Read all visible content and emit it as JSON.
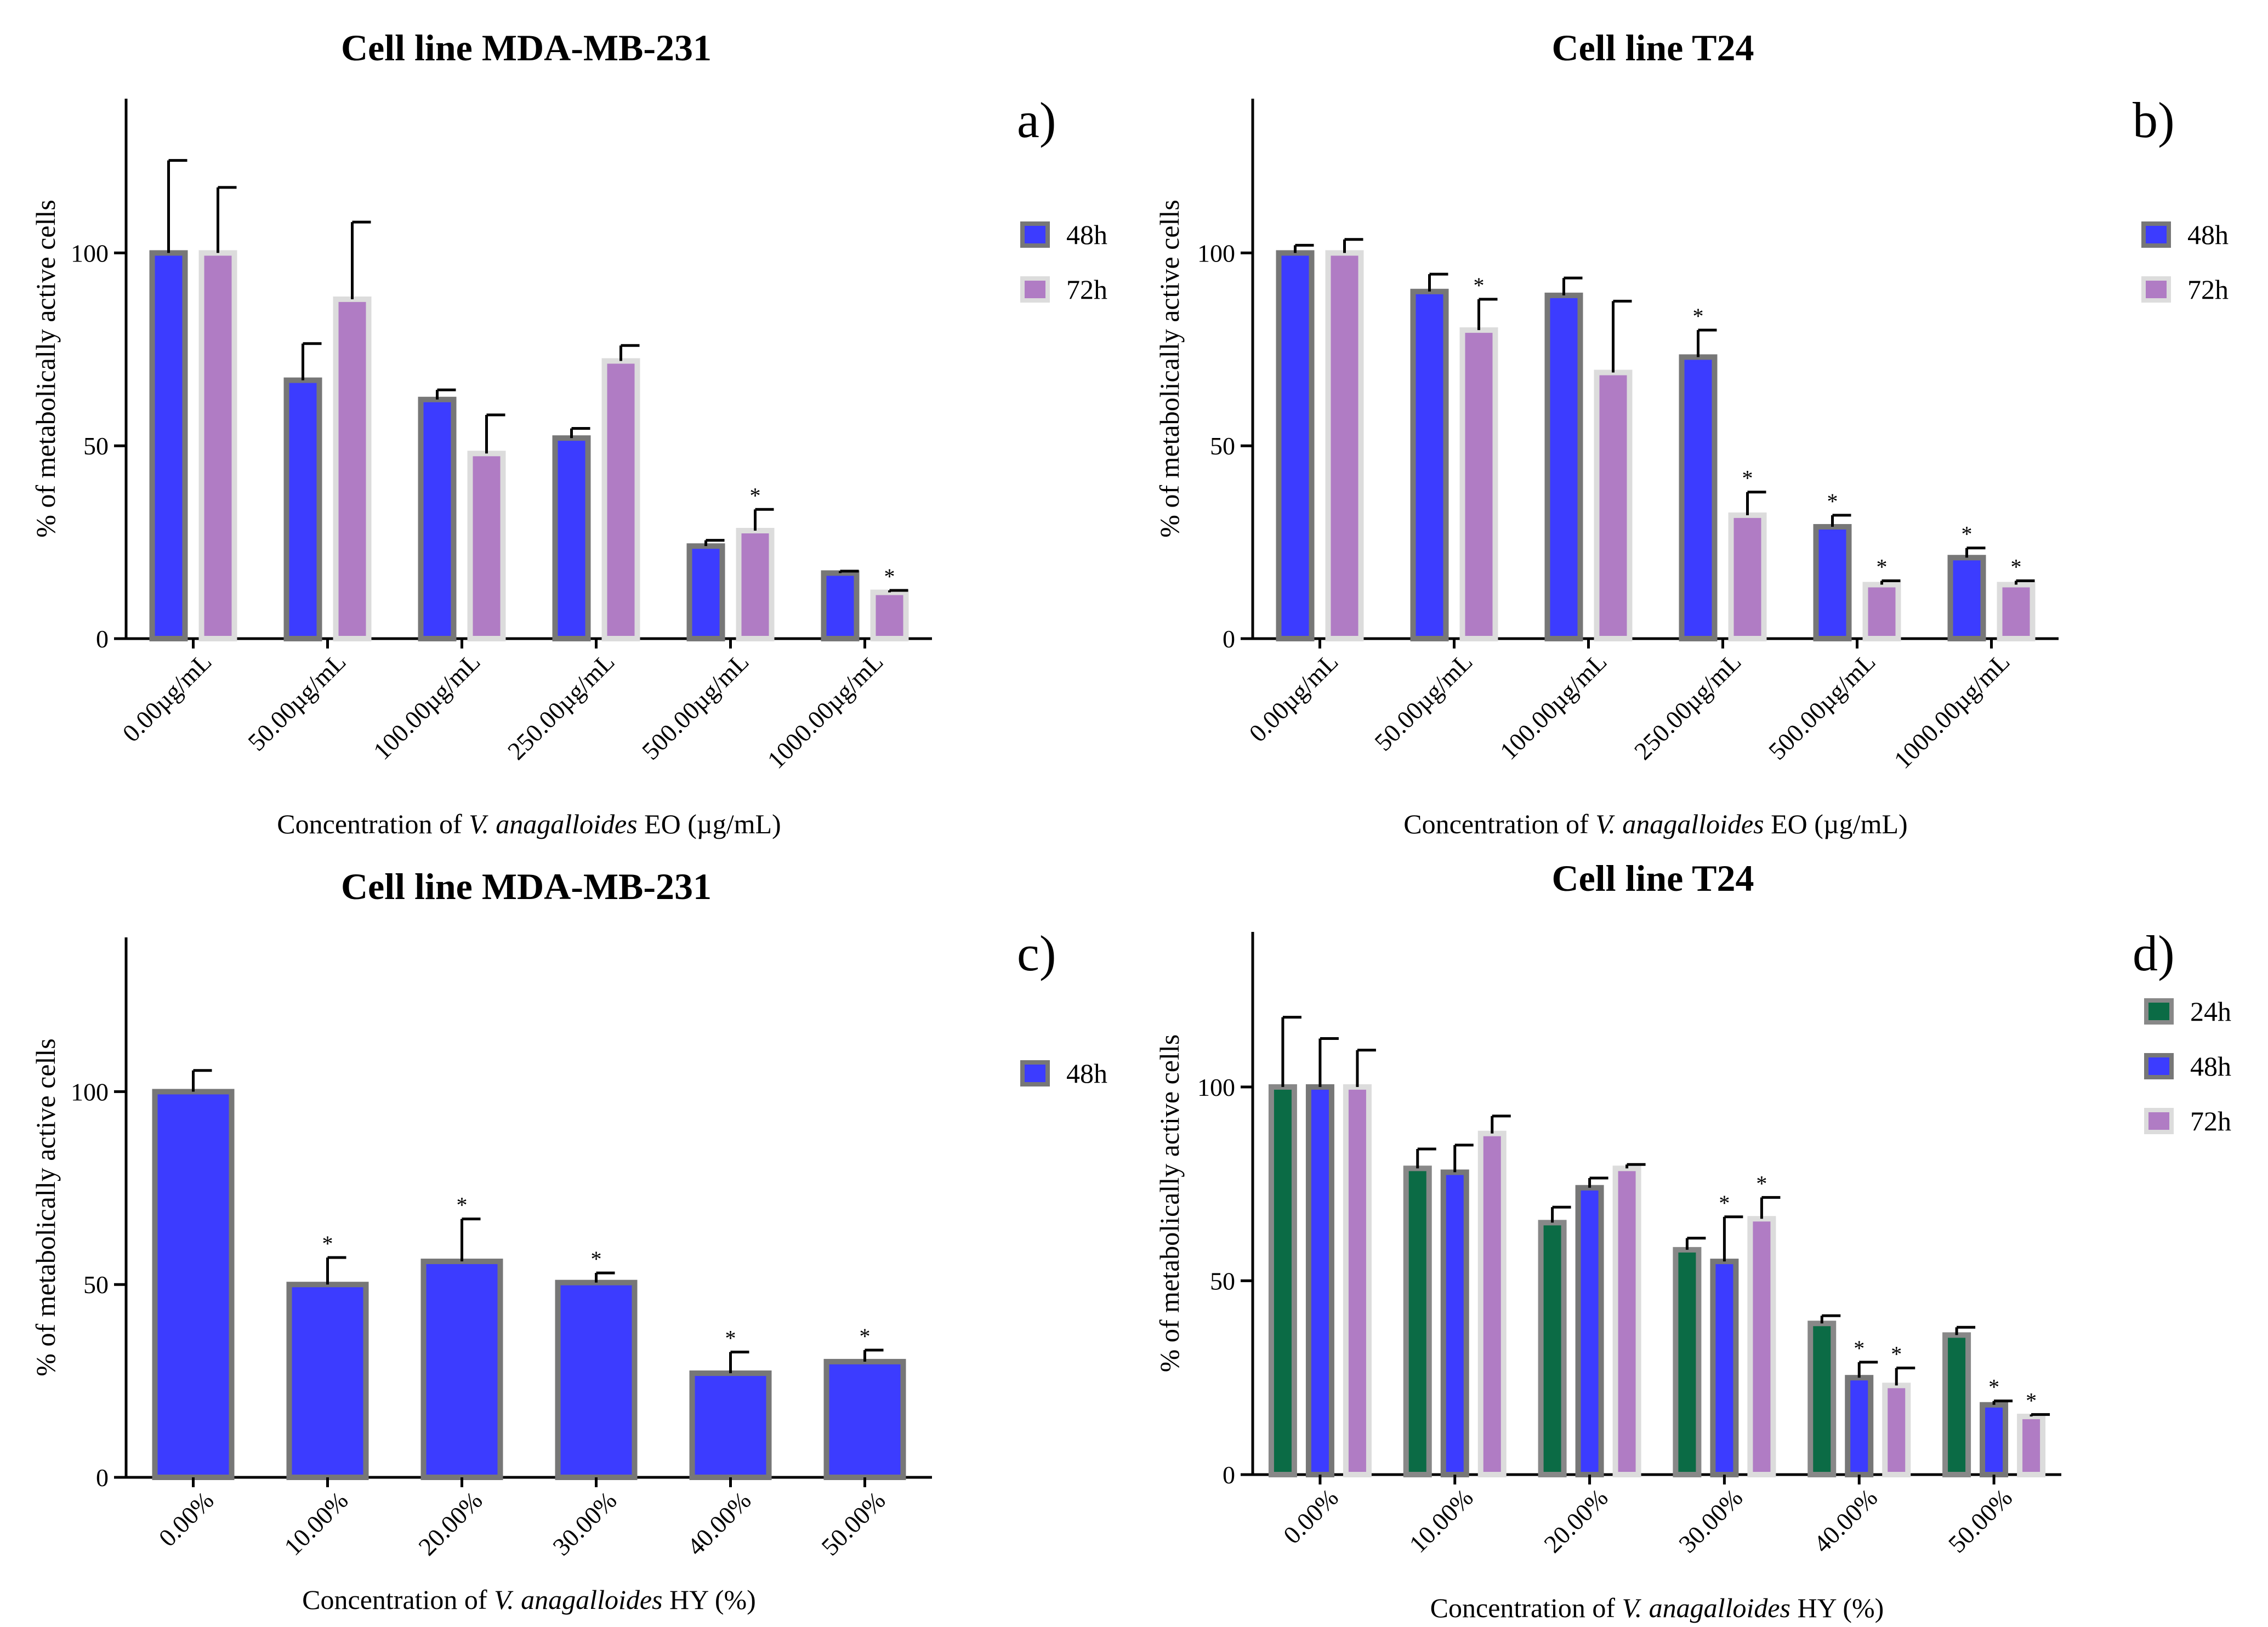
{
  "colors": {
    "24h": "#0b6b45",
    "48h": "#3c3cff",
    "72h": "#b07cc4"
  },
  "edge_colors": {
    "24h": "#888888",
    "48h": "#777777",
    "72h": "#dcdcdc"
  },
  "chart_data": [
    {
      "id": "a",
      "type": "bar",
      "panel_label": "a)",
      "title": "Cell line MDA-MB-231",
      "xlabel_prefix": "Concentration of ",
      "xlabel_italic": "V. anagalloides",
      "xlabel_suffix": " EO (µg/mL)",
      "ylabel": "% of metabolically active cells",
      "ylim": [
        0,
        140
      ],
      "yticks": [
        0,
        50,
        100
      ],
      "categories": [
        "0.00µg/mL",
        "50.00µg/mL",
        "100.00µg/mL",
        "250.00µg/mL",
        "500.00µg/mL",
        "1000.00µg/mL"
      ],
      "series": [
        {
          "name": "48h",
          "values": [
            100,
            67,
            62,
            52,
            24,
            17
          ],
          "errors": [
            24,
            9.5,
            2.5,
            2.5,
            1.5,
            0.5
          ],
          "significant": [
            false,
            false,
            false,
            false,
            false,
            false
          ]
        },
        {
          "name": "72h",
          "values": [
            100,
            88,
            48,
            72,
            28,
            12
          ],
          "errors": [
            17,
            20,
            10,
            4,
            5.5,
            0.5
          ],
          "significant": [
            false,
            false,
            false,
            false,
            true,
            true
          ]
        }
      ],
      "legend_position": "right"
    },
    {
      "id": "b",
      "type": "bar",
      "panel_label": "b)",
      "title": "Cell line T24",
      "xlabel_prefix": "Concentration of ",
      "xlabel_italic": "V. anagalloides",
      "xlabel_suffix": " EO (µg/mL)",
      "ylabel": "% of metabolically active cells",
      "ylim": [
        0,
        140
      ],
      "yticks": [
        0,
        50,
        100
      ],
      "categories": [
        "0.00µg/mL",
        "50.00µg/mL",
        "100.00µg/mL",
        "250.00µg/mL",
        "500.00µg/mL",
        "1000.00µg/mL"
      ],
      "series": [
        {
          "name": "48h",
          "values": [
            100,
            90,
            89,
            73,
            29,
            21
          ],
          "errors": [
            2,
            4.5,
            4.5,
            7,
            3,
            2.5
          ],
          "significant": [
            false,
            false,
            false,
            true,
            true,
            true
          ]
        },
        {
          "name": "72h",
          "values": [
            100,
            80,
            69,
            32,
            14,
            14
          ],
          "errors": [
            3.5,
            8,
            18.5,
            6,
            1,
            1
          ],
          "significant": [
            false,
            true,
            false,
            true,
            true,
            true
          ]
        }
      ],
      "legend_position": "right"
    },
    {
      "id": "c",
      "type": "bar",
      "panel_label": "c)",
      "title": "Cell line MDA-MB-231",
      "xlabel_prefix": "Concentration of ",
      "xlabel_italic": "V. anagalloides",
      "xlabel_suffix": " HY (%)",
      "ylabel": "% of metabolically active cells",
      "ylim": [
        0,
        140
      ],
      "yticks": [
        0,
        50,
        100
      ],
      "categories": [
        "0.00%",
        "10.00%",
        "20.00%",
        "30.00%",
        "40.00%",
        "50.00%"
      ],
      "series": [
        {
          "name": "48h",
          "values": [
            100,
            50,
            56,
            50.5,
            27,
            30
          ],
          "errors": [
            5.5,
            7,
            11,
            2.5,
            5.5,
            3
          ],
          "significant": [
            false,
            true,
            true,
            true,
            true,
            true
          ]
        }
      ],
      "legend_position": "right"
    },
    {
      "id": "d",
      "type": "bar",
      "panel_label": "d)",
      "title": "Cell line T24",
      "xlabel_prefix": "Concentration of ",
      "xlabel_italic": "V. anagalloides",
      "xlabel_suffix": " HY (%)",
      "ylabel": "% of metabolically active cells",
      "ylim": [
        0,
        140
      ],
      "yticks": [
        0,
        50,
        100
      ],
      "categories": [
        "0.00%",
        "10.00%",
        "20.00%",
        "30.00%",
        "40.00%",
        "50.00%"
      ],
      "series": [
        {
          "name": "24h",
          "values": [
            100,
            79,
            65,
            58,
            39,
            36
          ],
          "errors": [
            18,
            5,
            4,
            3,
            2,
            2
          ],
          "significant": [
            false,
            false,
            false,
            false,
            false,
            false
          ]
        },
        {
          "name": "48h",
          "values": [
            100,
            78,
            74,
            55,
            25,
            18
          ],
          "errors": [
            12.5,
            7,
            2.5,
            11.5,
            4,
            1
          ],
          "significant": [
            false,
            false,
            false,
            true,
            true,
            true
          ]
        },
        {
          "name": "72h",
          "values": [
            100,
            88,
            79,
            66,
            23,
            15
          ],
          "errors": [
            9.5,
            4.5,
            1,
            5.5,
            4.5,
            0.5
          ],
          "significant": [
            false,
            false,
            false,
            true,
            true,
            true
          ]
        }
      ],
      "legend_position": "right"
    }
  ]
}
